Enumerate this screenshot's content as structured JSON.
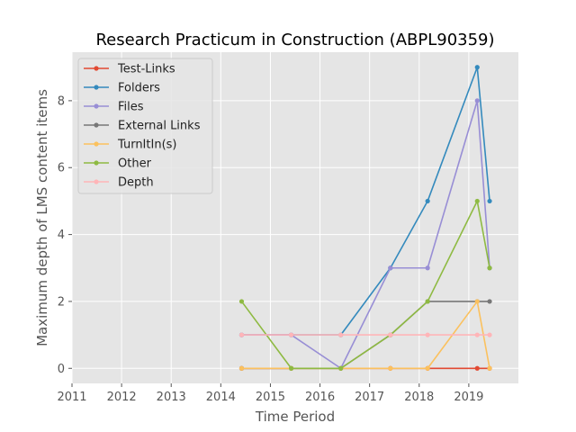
{
  "chart_data": {
    "type": "line",
    "title": "Research Practicum in Construction (ABPL90359)",
    "xlabel": "Time Period",
    "ylabel": "Maximum depth of LMS content items",
    "xlim": [
      2011,
      2020
    ],
    "ylim": [
      -0.45,
      9.45
    ],
    "x_ticks": [
      2011,
      2012,
      2013,
      2014,
      2015,
      2016,
      2017,
      2018,
      2019
    ],
    "y_ticks": [
      0,
      2,
      4,
      6,
      8
    ],
    "grid": true,
    "legend_position": "upper-left",
    "background": "#e5e5e5",
    "series": [
      {
        "name": "Test-Links",
        "color": "#e24a33",
        "x": [
          2014.42,
          2015.42,
          2016.42,
          2017.42,
          2018.17,
          2019.17,
          2019.42
        ],
        "y": [
          0,
          0,
          0,
          0,
          0,
          0,
          0
        ]
      },
      {
        "name": "Folders",
        "color": "#348abd",
        "x": [
          2014.42,
          2015.42,
          2016.42,
          2017.42,
          2018.17,
          2019.17,
          2019.42
        ],
        "y": [
          1,
          1,
          1,
          3,
          5,
          9,
          5
        ]
      },
      {
        "name": "Files",
        "color": "#988ed5",
        "x": [
          2014.42,
          2015.42,
          2016.42,
          2017.42,
          2018.17,
          2019.17,
          2019.42
        ],
        "y": [
          1,
          1,
          0,
          3,
          3,
          8,
          3
        ]
      },
      {
        "name": "External Links",
        "color": "#777777",
        "x": [
          2014.42,
          2015.42,
          2016.42,
          2017.42,
          2018.17,
          2019.17,
          2019.42
        ],
        "y": [
          0,
          0,
          0,
          1,
          2,
          2,
          2
        ]
      },
      {
        "name": "TurnItIn(s)",
        "color": "#fbc15e",
        "x": [
          2014.42,
          2015.42,
          2016.42,
          2017.42,
          2018.17,
          2019.17,
          2019.42
        ],
        "y": [
          0,
          0,
          0,
          0,
          0,
          2,
          0
        ]
      },
      {
        "name": "Other",
        "color": "#8eba42",
        "x": [
          2014.42,
          2015.42,
          2016.42,
          2017.42,
          2018.17,
          2019.17,
          2019.42
        ],
        "y": [
          2,
          0,
          0,
          1,
          2,
          5,
          3
        ]
      },
      {
        "name": "Depth",
        "color": "#ffb5b8",
        "x": [
          2014.42,
          2015.42,
          2016.42,
          2017.42,
          2018.17,
          2019.17,
          2019.42
        ],
        "y": [
          1,
          1,
          1,
          1,
          1,
          1,
          1
        ]
      }
    ]
  }
}
